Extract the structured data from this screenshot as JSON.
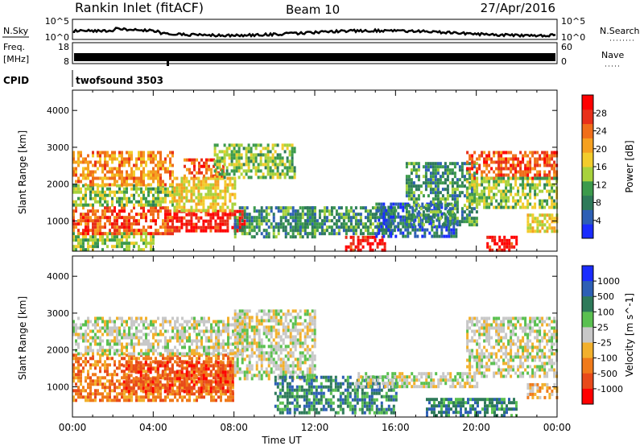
{
  "header": {
    "site": "Rankin Inlet (fitACF)",
    "beam": "Beam 10",
    "date": "27/Apr/2016"
  },
  "strips": {
    "nsky": {
      "label": "N.Sky",
      "ticks": [
        "10^5",
        "10^0"
      ],
      "right_label": "N.Search",
      "right_ticks": [
        "10^5",
        "10^0"
      ]
    },
    "freq": {
      "label_top": "Freq.",
      "label_bottom": "[MHz]",
      "ticks": [
        "18",
        "8"
      ],
      "right_label": "Nave",
      "right_ticks": [
        "60",
        "0"
      ]
    },
    "cpid": {
      "label": "CPID",
      "value": "twofsound 3503"
    }
  },
  "chart_data": [
    {
      "type": "heatmap",
      "name": "power",
      "ylabel": "Slant Range [km]",
      "ylim": [
        180,
        4550
      ],
      "y_ticks": [
        1000,
        2000,
        3000,
        4000
      ],
      "x_ticks": [
        "00:00",
        "04:00",
        "08:00",
        "12:00",
        "16:00",
        "20:00",
        "00:00"
      ],
      "xlim_hours": [
        0,
        24
      ],
      "colorbar": {
        "label": "Power [dB]",
        "range": [
          0,
          32
        ],
        "ticks": [
          4,
          8,
          12,
          16,
          20,
          24,
          28
        ],
        "colors": [
          "#1a2cff",
          "#2d5fb5",
          "#2e7a5a",
          "#3c9a4c",
          "#a8d23c",
          "#f2cc2c",
          "#f5a020",
          "#f06e1a",
          "#e8301a",
          "#ff0000"
        ]
      },
      "regions": [
        {
          "t": [
            0.0,
            4.0
          ],
          "r": [
            180,
            700
          ],
          "level": 12
        },
        {
          "t": [
            0.0,
            5.0
          ],
          "r": [
            700,
            1400
          ],
          "level": 24
        },
        {
          "t": [
            0.0,
            5.0
          ],
          "r": [
            1400,
            2000
          ],
          "level": 12
        },
        {
          "t": [
            0.0,
            5.0
          ],
          "r": [
            2000,
            2900
          ],
          "level": 20
        },
        {
          "t": [
            5.0,
            8.5
          ],
          "r": [
            700,
            1300
          ],
          "level": 28
        },
        {
          "t": [
            5.0,
            8.0
          ],
          "r": [
            1300,
            2200
          ],
          "level": 16
        },
        {
          "t": [
            5.5,
            7.5
          ],
          "r": [
            2200,
            2700
          ],
          "level": 24
        },
        {
          "t": [
            7.0,
            11.0
          ],
          "r": [
            2200,
            3100
          ],
          "level": 12
        },
        {
          "t": [
            8.0,
            12.0
          ],
          "r": [
            600,
            1400
          ],
          "level": 8
        },
        {
          "t": [
            11.0,
            16.0
          ],
          "r": [
            700,
            1400
          ],
          "level": 8
        },
        {
          "t": [
            13.5,
            15.5
          ],
          "r": [
            180,
            600
          ],
          "level": 28
        },
        {
          "t": [
            15.0,
            19.0
          ],
          "r": [
            600,
            1500
          ],
          "level": 4
        },
        {
          "t": [
            16.5,
            20.0
          ],
          "r": [
            900,
            2600
          ],
          "level": 8
        },
        {
          "t": [
            19.5,
            24.0
          ],
          "r": [
            2200,
            2900
          ],
          "level": 24
        },
        {
          "t": [
            19.5,
            24.0
          ],
          "r": [
            1400,
            2200
          ],
          "level": 12
        },
        {
          "t": [
            20.5,
            22.0
          ],
          "r": [
            180,
            600
          ],
          "level": 28
        },
        {
          "t": [
            22.5,
            24.0
          ],
          "r": [
            700,
            1200
          ],
          "level": 16
        }
      ]
    },
    {
      "type": "heatmap",
      "name": "velocity",
      "ylabel": "Slant Range [km]",
      "xlabel": "Time UT",
      "ylim": [
        180,
        4550
      ],
      "y_ticks": [
        1000,
        2000,
        3000,
        4000
      ],
      "x_ticks": [
        "00:00",
        "04:00",
        "08:00",
        "12:00",
        "16:00",
        "20:00",
        "00:00"
      ],
      "xlim_hours": [
        0,
        24
      ],
      "colorbar": {
        "label": "Velocity [m s^-1]",
        "tick_labels": [
          "1000",
          "500",
          "100",
          "25",
          "-25",
          "-100",
          "-500",
          "-1000"
        ],
        "colors": [
          "#1a2cff",
          "#2d5fb5",
          "#2e7a5a",
          "#5ac050",
          "#c8c8c8",
          "#f2b02c",
          "#f07a1a",
          "#e84a1a",
          "#ff0000"
        ]
      },
      "regions": [
        {
          "t": [
            0.0,
            8.0
          ],
          "r": [
            600,
            1900
          ],
          "level": 6
        },
        {
          "t": [
            2.5,
            8.0
          ],
          "r": [
            900,
            1700
          ],
          "level": 7
        },
        {
          "t": [
            0.0,
            8.5
          ],
          "r": [
            1900,
            2900
          ],
          "level": 4
        },
        {
          "t": [
            8.0,
            12.0
          ],
          "r": [
            1200,
            3100
          ],
          "level": 4
        },
        {
          "t": [
            10.0,
            16.0
          ],
          "r": [
            300,
            1300
          ],
          "level": 2
        },
        {
          "t": [
            14.0,
            20.0
          ],
          "r": [
            1000,
            1400
          ],
          "level": 4
        },
        {
          "t": [
            17.5,
            22.0
          ],
          "r": [
            180,
            700
          ],
          "level": 2
        },
        {
          "t": [
            19.5,
            24.0
          ],
          "r": [
            1300,
            2900
          ],
          "level": 4
        },
        {
          "t": [
            22.5,
            24.0
          ],
          "r": [
            700,
            1100
          ],
          "level": 5
        }
      ]
    }
  ]
}
